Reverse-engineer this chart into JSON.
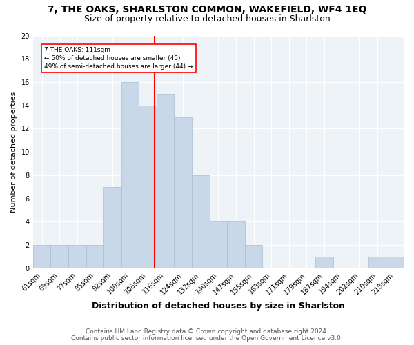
{
  "title": "7, THE OAKS, SHARLSTON COMMON, WAKEFIELD, WF4 1EQ",
  "subtitle": "Size of property relative to detached houses in Sharlston",
  "xlabel": "Distribution of detached houses by size in Sharlston",
  "ylabel": "Number of detached properties",
  "footnote1": "Contains HM Land Registry data © Crown copyright and database right 2024.",
  "footnote2": "Contains public sector information licensed under the Open Government Licence v3.0.",
  "categories": [
    "61sqm",
    "69sqm",
    "77sqm",
    "85sqm",
    "92sqm",
    "100sqm",
    "108sqm",
    "116sqm",
    "124sqm",
    "132sqm",
    "140sqm",
    "147sqm",
    "155sqm",
    "163sqm",
    "171sqm",
    "179sqm",
    "187sqm",
    "194sqm",
    "202sqm",
    "210sqm",
    "218sqm"
  ],
  "values": [
    2,
    2,
    2,
    2,
    7,
    16,
    14,
    15,
    13,
    8,
    4,
    4,
    2,
    0,
    0,
    0,
    1,
    0,
    0,
    1,
    1
  ],
  "bar_color": "#c8d8e8",
  "bar_edge_color": "#a8bece",
  "property_line_label": "7 THE OAKS: 111sqm",
  "annotation_line1": "← 50% of detached houses are smaller (45)",
  "annotation_line2": "49% of semi-detached houses are larger (44) →",
  "ylim": [
    0,
    20
  ],
  "yticks": [
    0,
    2,
    4,
    6,
    8,
    10,
    12,
    14,
    16,
    18,
    20
  ],
  "bg_color": "#ffffff",
  "plot_bg_color": "#eef3f8",
  "grid_color": "#ffffff",
  "title_fontsize": 10,
  "subtitle_fontsize": 9,
  "xlabel_fontsize": 9,
  "ylabel_fontsize": 8,
  "tick_fontsize": 7,
  "footnote_fontsize": 6.5,
  "line_index": 6.375
}
